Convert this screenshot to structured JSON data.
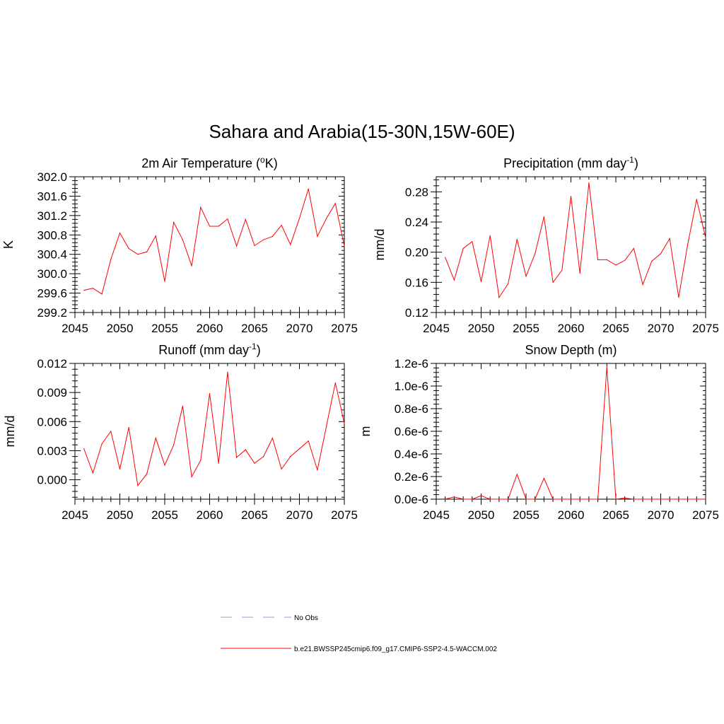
{
  "title": "Sahara and Arabia(15-30N,15W-60E)",
  "colors": {
    "series": "#ff0000",
    "obs": "#9999dd",
    "axis": "#000000"
  },
  "legend": [
    {
      "label": "No Obs",
      "style": "dashed",
      "color": "#9999dd"
    },
    {
      "label": "b.e21.BWSSP245cmip6.f09_g17.CMIP6-SSP2-4.5-WACCM.002",
      "style": "solid",
      "color": "#ff0000"
    }
  ],
  "chart_data": [
    {
      "type": "line",
      "title": "2m Air Temperature (",
      "title_sup": "o",
      "title_after": "K)",
      "xlabel": "",
      "ylabel": "K",
      "xlim": [
        2045,
        2075
      ],
      "ylim": [
        299.2,
        302.0
      ],
      "xticks": [
        2045,
        2050,
        2055,
        2060,
        2065,
        2070,
        2075
      ],
      "yticks": [
        299.2,
        299.6,
        300.0,
        300.4,
        300.8,
        301.2,
        301.6,
        302.0
      ],
      "ytick_labels": [
        "299.2",
        "299.6",
        "300.0",
        "300.4",
        "300.8",
        "301.2",
        "301.6",
        "302.0"
      ],
      "series": [
        {
          "x": [
            2046,
            2047,
            2048,
            2049,
            2050,
            2051,
            2052,
            2053,
            2054,
            2055,
            2056,
            2057,
            2058,
            2059,
            2060,
            2061,
            2062,
            2063,
            2064,
            2065,
            2066,
            2067,
            2068,
            2069,
            2070,
            2071,
            2072,
            2073,
            2074,
            2075
          ],
          "values": [
            299.66,
            299.7,
            299.58,
            300.3,
            300.84,
            300.52,
            300.4,
            300.45,
            300.78,
            299.84,
            301.06,
            300.7,
            300.16,
            301.37,
            300.98,
            300.98,
            301.13,
            300.57,
            301.12,
            300.58,
            300.7,
            300.77,
            301.0,
            300.6,
            301.14,
            301.75,
            300.77,
            301.14,
            301.45,
            300.57
          ]
        }
      ]
    },
    {
      "type": "line",
      "title": "Precipitation (mm day",
      "title_sup": "-1",
      "title_after": ")",
      "xlabel": "",
      "ylabel": "mm/d",
      "xlim": [
        2045,
        2075
      ],
      "ylim": [
        0.12,
        0.3
      ],
      "xticks": [
        2045,
        2050,
        2055,
        2060,
        2065,
        2070,
        2075
      ],
      "yticks": [
        0.12,
        0.16,
        0.2,
        0.24,
        0.28
      ],
      "ytick_labels": [
        "0.12",
        "0.16",
        "0.20",
        "0.24",
        "0.28"
      ],
      "series": [
        {
          "x": [
            2046,
            2047,
            2048,
            2049,
            2050,
            2051,
            2052,
            2053,
            2054,
            2055,
            2056,
            2057,
            2058,
            2059,
            2060,
            2061,
            2062,
            2063,
            2064,
            2065,
            2066,
            2067,
            2068,
            2069,
            2070,
            2071,
            2072,
            2073,
            2074,
            2075
          ],
          "values": [
            0.193,
            0.163,
            0.205,
            0.214,
            0.161,
            0.222,
            0.14,
            0.158,
            0.217,
            0.168,
            0.198,
            0.247,
            0.16,
            0.176,
            0.274,
            0.172,
            0.292,
            0.19,
            0.19,
            0.183,
            0.189,
            0.205,
            0.157,
            0.188,
            0.198,
            0.218,
            0.14,
            0.21,
            0.27,
            0.219
          ]
        }
      ]
    },
    {
      "type": "line",
      "title": "Runoff (mm day",
      "title_sup": "-1",
      "title_after": ")",
      "xlabel": "",
      "ylabel": "mm/d",
      "xlim": [
        2045,
        2075
      ],
      "ylim": [
        -0.002,
        0.012
      ],
      "xticks": [
        2045,
        2050,
        2055,
        2060,
        2065,
        2070,
        2075
      ],
      "yticks": [
        0.0,
        0.003,
        0.006,
        0.009,
        0.012
      ],
      "ytick_labels": [
        "0.000",
        "0.003",
        "0.006",
        "0.009",
        "0.012"
      ],
      "series": [
        {
          "x": [
            2046,
            2047,
            2048,
            2049,
            2050,
            2051,
            2052,
            2053,
            2054,
            2055,
            2056,
            2057,
            2058,
            2059,
            2060,
            2061,
            2062,
            2063,
            2064,
            2065,
            2066,
            2067,
            2068,
            2069,
            2070,
            2071,
            2072,
            2073,
            2074,
            2075
          ],
          "values": [
            0.0032,
            0.0007,
            0.0037,
            0.005,
            0.0011,
            0.0054,
            -0.0006,
            0.0006,
            0.0043,
            0.0015,
            0.0036,
            0.0076,
            0.0003,
            0.002,
            0.0089,
            0.0017,
            0.0111,
            0.0023,
            0.0031,
            0.0017,
            0.0024,
            0.0043,
            0.0011,
            0.0024,
            0.0032,
            0.004,
            0.001,
            0.0055,
            0.01,
            0.0058
          ]
        }
      ]
    },
    {
      "type": "line",
      "title": "Snow Depth (m)",
      "title_sup": "",
      "title_after": "",
      "xlabel": "",
      "ylabel": "m",
      "xlim": [
        2045,
        2075
      ],
      "ylim": [
        0.0,
        1.2e-06
      ],
      "xticks": [
        2045,
        2050,
        2055,
        2060,
        2065,
        2070,
        2075
      ],
      "yticks": [
        0.0,
        2e-07,
        4e-07,
        6e-07,
        8e-07,
        1e-06,
        1.2e-06
      ],
      "ytick_labels": [
        "0.0e-6",
        "0.2e-6",
        "0.4e-6",
        "0.6e-6",
        "0.8e-6",
        "1.0e-6",
        "1.2e-6"
      ],
      "series": [
        {
          "x": [
            2046,
            2047,
            2048,
            2049,
            2050,
            2051,
            2052,
            2053,
            2054,
            2055,
            2056,
            2057,
            2058,
            2059,
            2060,
            2061,
            2062,
            2063,
            2064,
            2065,
            2066,
            2067,
            2068,
            2069,
            2070,
            2071,
            2072,
            2073,
            2074,
            2075
          ],
          "values": [
            0.0,
            2e-08,
            0.0,
            0.0,
            3e-08,
            0.0,
            0.0,
            0.0,
            2.2e-07,
            0.0,
            0.0,
            1.85e-07,
            0.0,
            0.0,
            0.0,
            0.0,
            0.0,
            0.0,
            1.17e-06,
            0.0,
            1e-08,
            0.0,
            0.0,
            0.0,
            0.0,
            0.0,
            0.0,
            0.0,
            0.0,
            0.0
          ]
        }
      ]
    }
  ]
}
